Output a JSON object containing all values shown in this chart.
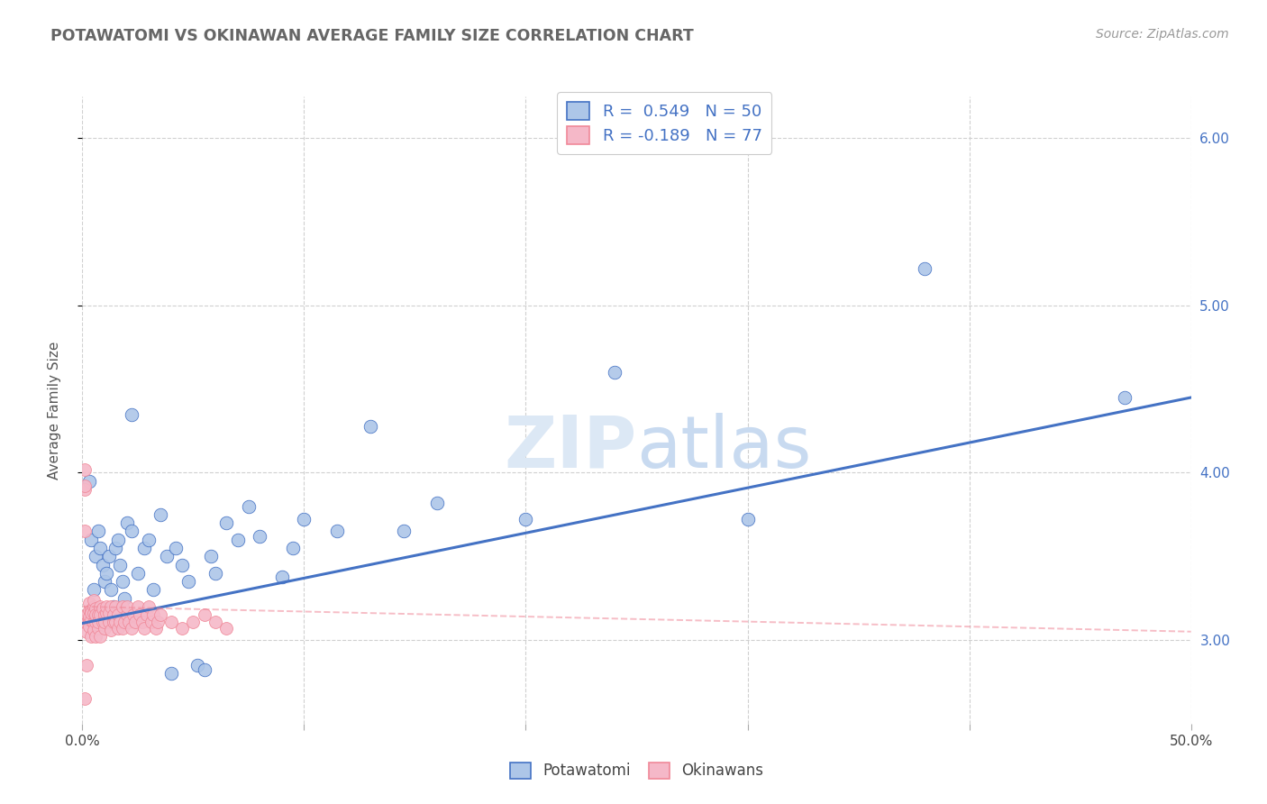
{
  "title": "POTAWATOMI VS OKINAWAN AVERAGE FAMILY SIZE CORRELATION CHART",
  "source_text": "Source: ZipAtlas.com",
  "ylabel": "Average Family Size",
  "xlim": [
    0.0,
    0.5
  ],
  "ylim": [
    2.5,
    6.25
  ],
  "yticks": [
    3.0,
    4.0,
    5.0,
    6.0
  ],
  "xticks": [
    0.0,
    0.1,
    0.2,
    0.3,
    0.4,
    0.5
  ],
  "xticklabels": [
    "0.0%",
    "",
    "",
    "",
    "",
    "50.0%"
  ],
  "yticklabels_right": [
    "3.00",
    "4.00",
    "5.00",
    "6.00"
  ],
  "potawatomi_R": 0.549,
  "potawatomi_N": 50,
  "okinawan_R": -0.189,
  "okinawan_N": 77,
  "potawatomi_color": "#adc6e8",
  "okinawan_color": "#f5b8c8",
  "potawatomi_line_color": "#4472c4",
  "okinawan_line_color": "#f08898",
  "background_color": "#ffffff",
  "grid_color": "#d0d0d0",
  "watermark_color": "#dce8f5",
  "potawatomi_x": [
    0.003,
    0.005,
    0.004,
    0.006,
    0.007,
    0.008,
    0.009,
    0.01,
    0.011,
    0.012,
    0.013,
    0.014,
    0.015,
    0.016,
    0.017,
    0.018,
    0.019,
    0.02,
    0.022,
    0.025,
    0.028,
    0.03,
    0.032,
    0.035,
    0.038,
    0.04,
    0.042,
    0.045,
    0.048,
    0.052,
    0.055,
    0.058,
    0.06,
    0.065,
    0.07,
    0.075,
    0.08,
    0.09,
    0.095,
    0.1,
    0.115,
    0.13,
    0.145,
    0.16,
    0.2,
    0.24,
    0.3,
    0.38,
    0.47,
    0.022
  ],
  "potawatomi_y": [
    3.95,
    3.3,
    3.6,
    3.5,
    3.65,
    3.55,
    3.45,
    3.35,
    3.4,
    3.5,
    3.3,
    3.2,
    3.55,
    3.6,
    3.45,
    3.35,
    3.25,
    3.7,
    3.65,
    3.4,
    3.55,
    3.6,
    3.3,
    3.75,
    3.5,
    2.8,
    3.55,
    3.45,
    3.35,
    2.85,
    2.82,
    3.5,
    3.4,
    3.7,
    3.6,
    3.8,
    3.62,
    3.38,
    3.55,
    3.72,
    3.65,
    4.28,
    3.65,
    3.82,
    3.72,
    4.6,
    3.72,
    5.22,
    4.45,
    4.35
  ],
  "okinawan_x": [
    0.001,
    0.001,
    0.001,
    0.002,
    0.002,
    0.002,
    0.002,
    0.003,
    0.003,
    0.003,
    0.003,
    0.003,
    0.004,
    0.004,
    0.004,
    0.004,
    0.005,
    0.005,
    0.005,
    0.005,
    0.005,
    0.006,
    0.006,
    0.006,
    0.006,
    0.007,
    0.007,
    0.007,
    0.008,
    0.008,
    0.008,
    0.009,
    0.009,
    0.01,
    0.01,
    0.01,
    0.011,
    0.011,
    0.012,
    0.012,
    0.013,
    0.013,
    0.014,
    0.014,
    0.015,
    0.015,
    0.016,
    0.016,
    0.017,
    0.018,
    0.018,
    0.019,
    0.02,
    0.02,
    0.021,
    0.022,
    0.023,
    0.024,
    0.025,
    0.026,
    0.027,
    0.028,
    0.029,
    0.03,
    0.031,
    0.032,
    0.033,
    0.034,
    0.035,
    0.04,
    0.045,
    0.05,
    0.055,
    0.06,
    0.065,
    0.001,
    0.001
  ],
  "okinawan_y": [
    3.9,
    3.65,
    2.65,
    3.15,
    3.1,
    3.05,
    2.85,
    3.12,
    3.18,
    3.14,
    3.08,
    3.22,
    3.12,
    3.18,
    3.02,
    3.16,
    3.1,
    3.2,
    3.06,
    3.16,
    3.24,
    3.11,
    3.19,
    3.02,
    3.15,
    3.07,
    3.15,
    3.11,
    3.2,
    3.15,
    3.02,
    3.11,
    3.19,
    3.15,
    3.07,
    3.11,
    3.16,
    3.2,
    3.11,
    3.16,
    3.06,
    3.2,
    3.11,
    3.15,
    3.11,
    3.2,
    3.07,
    3.15,
    3.11,
    3.2,
    3.07,
    3.11,
    3.15,
    3.2,
    3.11,
    3.07,
    3.15,
    3.11,
    3.2,
    3.15,
    3.11,
    3.07,
    3.15,
    3.2,
    3.11,
    3.15,
    3.07,
    3.11,
    3.15,
    3.11,
    3.07,
    3.11,
    3.15,
    3.11,
    3.07,
    3.92,
    4.02
  ],
  "pot_line_x0": 0.0,
  "pot_line_x1": 0.5,
  "pot_line_y0": 3.1,
  "pot_line_y1": 4.45,
  "oki_line_x0": 0.0,
  "oki_line_x1": 0.5,
  "oki_line_y0": 3.2,
  "oki_line_y1": 3.05
}
